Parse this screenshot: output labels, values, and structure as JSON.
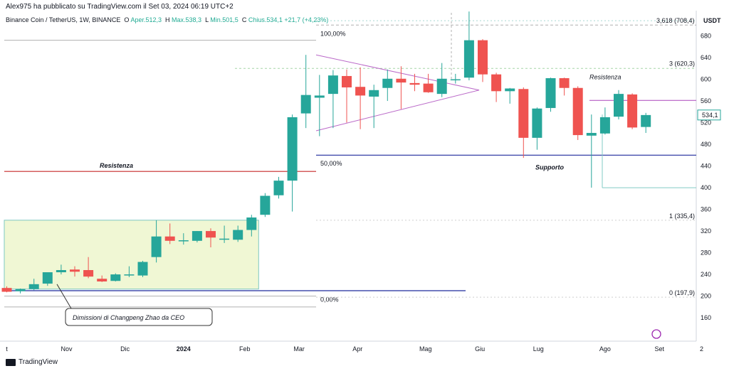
{
  "header": {
    "published": "Alex975 ha pubblicato su TradingView.com il Set 03, 2024 06:19 UTC+2",
    "symbol": "Binance Coin / TetherUS, 1W, BINANCE",
    "open_label": "O",
    "open": "Aper.512,3",
    "high_label": "H",
    "high": "Max.538,3",
    "low_label": "L",
    "low": "Min.501,5",
    "close_label": "C",
    "close": "Chius.534,1",
    "change": "+21,7 (+4,23%)"
  },
  "footer": {
    "brand": "TradingView"
  },
  "colors": {
    "up": "#26a69a",
    "down": "#ef5350",
    "resistance": "#c62828",
    "support": "#1e2a9c",
    "triangle": "#ba68c8",
    "box": "#f0f7d4"
  },
  "chart_data": {
    "type": "candlestick",
    "currency": "USDT",
    "ylim": [
      130,
      720
    ],
    "y_ticks": [
      160,
      200,
      240,
      280,
      320,
      360,
      400,
      440,
      480,
      520,
      560,
      600,
      640,
      680
    ],
    "x_labels": [
      {
        "label": "t",
        "w": -8
      },
      {
        "label": "Nov",
        "w": -3.6
      },
      {
        "label": "Dic",
        "w": 0.7
      },
      {
        "label": "2024",
        "w": 5
      },
      {
        "label": "Feb",
        "w": 9.5
      },
      {
        "label": "Mar",
        "w": 13.5
      },
      {
        "label": "Apr",
        "w": 17.8
      },
      {
        "label": "Mag",
        "w": 22.8
      },
      {
        "label": "Giu",
        "w": 26.8
      },
      {
        "label": "Lug",
        "w": 31.1
      },
      {
        "label": "Ago",
        "w": 36
      },
      {
        "label": "Set",
        "w": 40
      },
      {
        "label": "2",
        "w": 43.1
      }
    ],
    "candles": [
      {
        "o": 215,
        "h": 218,
        "l": 207,
        "c": 208
      },
      {
        "o": 209,
        "h": 214,
        "l": 205,
        "c": 213
      },
      {
        "o": 213,
        "h": 232,
        "l": 211,
        "c": 222
      },
      {
        "o": 223,
        "h": 242,
        "l": 219,
        "c": 244
      },
      {
        "o": 244,
        "h": 258,
        "l": 240,
        "c": 248
      },
      {
        "o": 249,
        "h": 255,
        "l": 236,
        "c": 245
      },
      {
        "o": 248,
        "h": 272,
        "l": 233,
        "c": 236
      },
      {
        "o": 232,
        "h": 238,
        "l": 226,
        "c": 227
      },
      {
        "o": 228,
        "h": 242,
        "l": 227,
        "c": 240
      },
      {
        "o": 240,
        "h": 255,
        "l": 235,
        "c": 240
      },
      {
        "o": 238,
        "h": 265,
        "l": 235,
        "c": 263
      },
      {
        "o": 272,
        "h": 340,
        "l": 262,
        "c": 310
      },
      {
        "o": 310,
        "h": 334,
        "l": 296,
        "c": 302
      },
      {
        "o": 302,
        "h": 316,
        "l": 295,
        "c": 303
      },
      {
        "o": 302,
        "h": 320,
        "l": 299,
        "c": 320
      },
      {
        "o": 320,
        "h": 325,
        "l": 290,
        "c": 308
      },
      {
        "o": 306,
        "h": 330,
        "l": 298,
        "c": 306
      },
      {
        "o": 304,
        "h": 330,
        "l": 300,
        "c": 322
      },
      {
        "o": 322,
        "h": 350,
        "l": 310,
        "c": 345
      },
      {
        "o": 350,
        "h": 390,
        "l": 346,
        "c": 385
      },
      {
        "o": 386,
        "h": 420,
        "l": 380,
        "c": 413
      },
      {
        "o": 413,
        "h": 535,
        "l": 356,
        "c": 530
      },
      {
        "o": 537,
        "h": 645,
        "l": 510,
        "c": 571
      },
      {
        "o": 566,
        "h": 608,
        "l": 495,
        "c": 570
      },
      {
        "o": 573,
        "h": 617,
        "l": 510,
        "c": 607
      },
      {
        "o": 606,
        "h": 618,
        "l": 520,
        "c": 585
      },
      {
        "o": 586,
        "h": 622,
        "l": 508,
        "c": 570
      },
      {
        "o": 568,
        "h": 590,
        "l": 510,
        "c": 580
      },
      {
        "o": 584,
        "h": 618,
        "l": 560,
        "c": 601
      },
      {
        "o": 601,
        "h": 624,
        "l": 545,
        "c": 594
      },
      {
        "o": 593,
        "h": 610,
        "l": 578,
        "c": 590
      },
      {
        "o": 592,
        "h": 610,
        "l": 575,
        "c": 576
      },
      {
        "o": 573,
        "h": 630,
        "l": 567,
        "c": 601
      },
      {
        "o": 600,
        "h": 610,
        "l": 592,
        "c": 600
      },
      {
        "o": 603,
        "h": 725,
        "l": 598,
        "c": 672
      },
      {
        "o": 672,
        "h": 674,
        "l": 595,
        "c": 609
      },
      {
        "o": 609,
        "h": 612,
        "l": 558,
        "c": 578
      },
      {
        "o": 578,
        "h": 584,
        "l": 555,
        "c": 583
      },
      {
        "o": 582,
        "h": 585,
        "l": 455,
        "c": 492
      },
      {
        "o": 492,
        "h": 548,
        "l": 470,
        "c": 546
      },
      {
        "o": 547,
        "h": 603,
        "l": 540,
        "c": 602
      },
      {
        "o": 602,
        "h": 603,
        "l": 570,
        "c": 584
      },
      {
        "o": 584,
        "h": 587,
        "l": 488,
        "c": 497
      },
      {
        "o": 496,
        "h": 535,
        "l": 400,
        "c": 501
      },
      {
        "o": 500,
        "h": 548,
        "l": 498,
        "c": 530
      },
      {
        "o": 531,
        "h": 580,
        "l": 526,
        "c": 573
      },
      {
        "o": 572,
        "h": 574,
        "l": 508,
        "c": 511
      },
      {
        "o": 512,
        "h": 538,
        "l": 501,
        "c": 534
      }
    ],
    "annotations": {
      "resistance_left": {
        "label": "Resistenza",
        "y": 430
      },
      "resistance_right": {
        "label": "Resistenza",
        "y": 561
      },
      "support": {
        "label": "Supporto",
        "y": 460
      },
      "low_line": {
        "y": 210
      },
      "fib_100": {
        "label": "100,00%",
        "y": 672
      },
      "fib_50": {
        "label": "50,00%",
        "y": 430
      },
      "fib_0": {
        "label": "0,00%",
        "y": 200
      },
      "ext_1": {
        "label": "1 (335,4)"
      },
      "ext_0": {
        "label": "0 (197,9)"
      },
      "ext_3618": {
        "label": "3,618 (708,4)"
      },
      "ext_3": {
        "label": "3 (620,3)"
      },
      "note": "Dimissioni di Changpeng Zhao da CEO",
      "last_price": "534,1"
    }
  }
}
